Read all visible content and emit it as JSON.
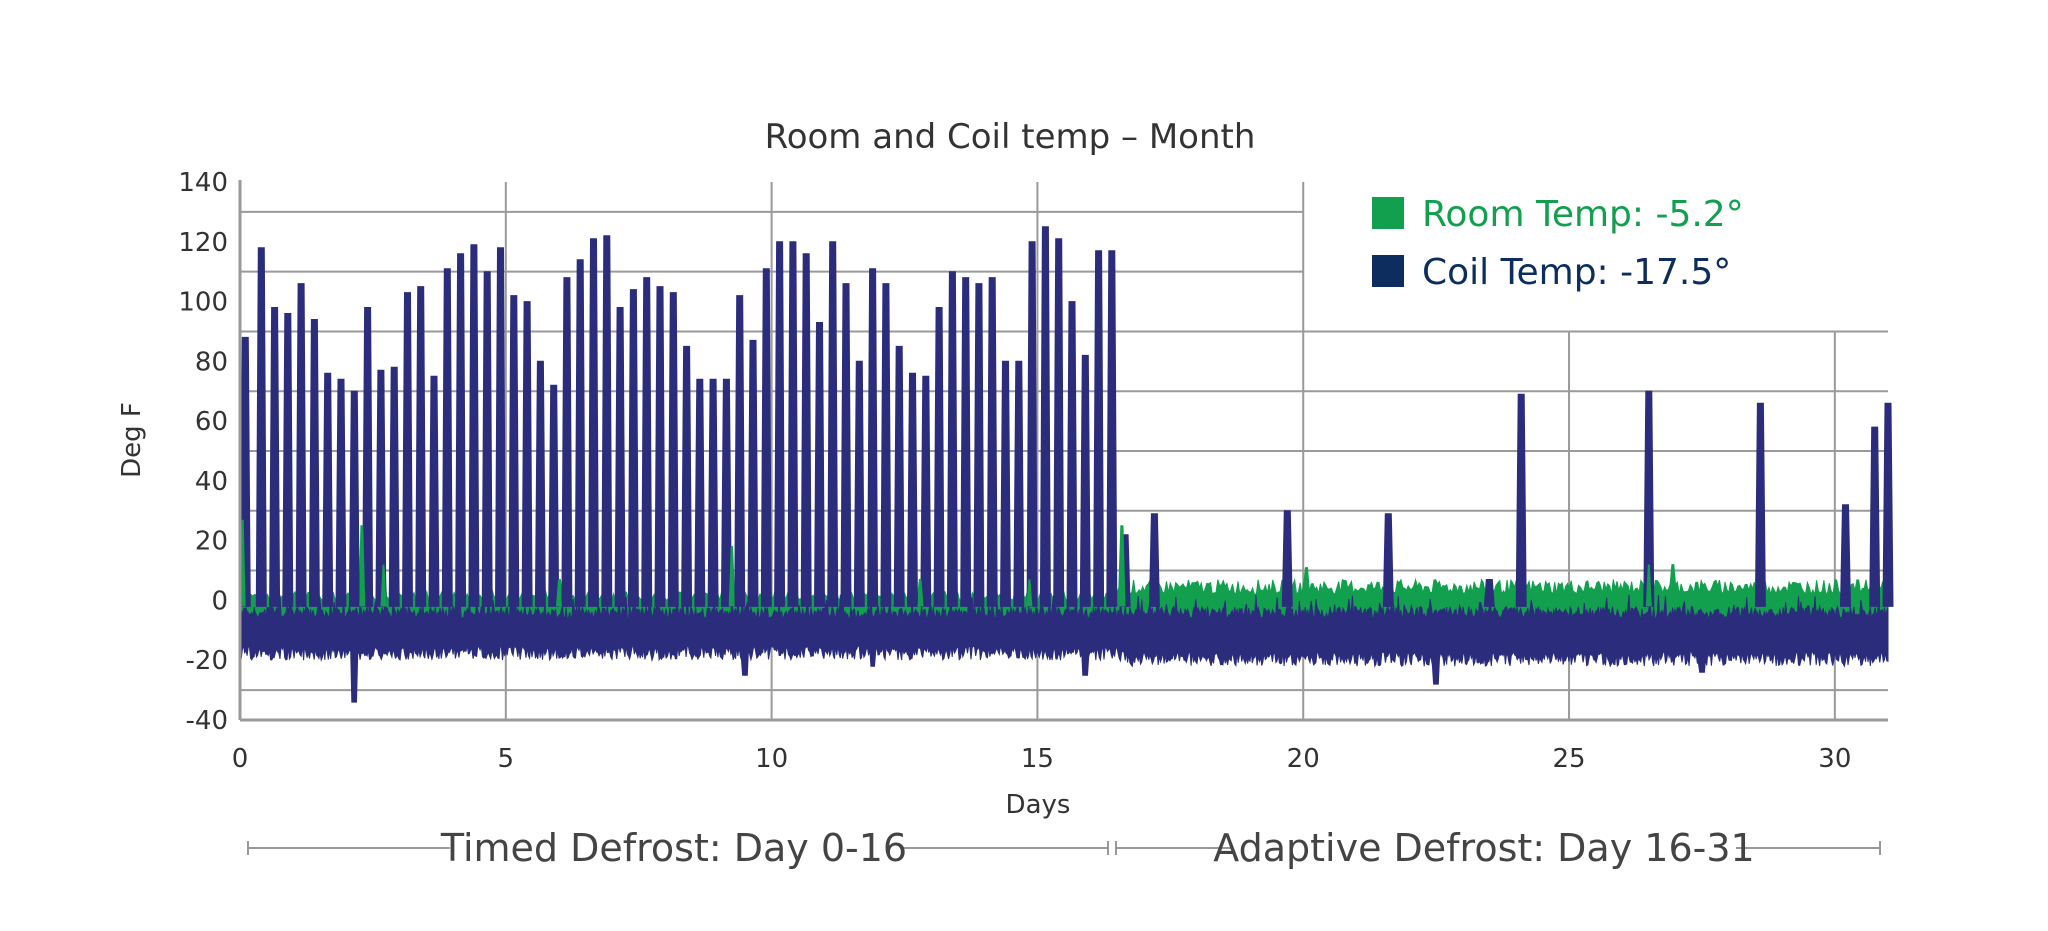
{
  "chart_data": {
    "type": "line",
    "title": "Room and Coil temp – Month",
    "xlabel": "Days",
    "ylabel": "Deg F",
    "xlim": [
      0,
      31
    ],
    "ylim": [
      -40,
      140
    ],
    "x_ticks": [
      0,
      5,
      10,
      15,
      20,
      25,
      30
    ],
    "y_ticks": [
      140,
      120,
      100,
      80,
      60,
      40,
      20,
      0,
      -20,
      -40
    ],
    "grid": true,
    "legend_position": "top-right",
    "legend": [
      {
        "label": "Room Temp: -5.2°",
        "color": "#12a04f"
      },
      {
        "label": "Coil Temp: -17.5°",
        "color": "#0c2d5e"
      }
    ],
    "sections": [
      {
        "label": "Timed Defrost: Day 0-16",
        "x_range": [
          0,
          16.5
        ]
      },
      {
        "label": "Adaptive Defrost: Day 16-31",
        "x_range": [
          16.5,
          31
        ]
      }
    ],
    "series": [
      {
        "name": "Coil Temp: -17.5°",
        "color": "#2b2d7c",
        "baseline_band": [
          -18,
          -2
        ],
        "spikes": [
          {
            "x": 0.1,
            "y": 88
          },
          {
            "x": 0.4,
            "y": 118
          },
          {
            "x": 0.65,
            "y": 98
          },
          {
            "x": 0.9,
            "y": 96
          },
          {
            "x": 1.15,
            "y": 106
          },
          {
            "x": 1.4,
            "y": 94
          },
          {
            "x": 1.65,
            "y": 76
          },
          {
            "x": 1.9,
            "y": 74
          },
          {
            "x": 2.15,
            "y": 70
          },
          {
            "x": 2.4,
            "y": 98
          },
          {
            "x": 2.65,
            "y": 77
          },
          {
            "x": 2.9,
            "y": 78
          },
          {
            "x": 3.15,
            "y": 103
          },
          {
            "x": 3.4,
            "y": 105
          },
          {
            "x": 3.65,
            "y": 75
          },
          {
            "x": 3.9,
            "y": 111
          },
          {
            "x": 4.15,
            "y": 116
          },
          {
            "x": 4.4,
            "y": 119
          },
          {
            "x": 4.65,
            "y": 110
          },
          {
            "x": 4.9,
            "y": 118
          },
          {
            "x": 5.15,
            "y": 102
          },
          {
            "x": 5.4,
            "y": 100
          },
          {
            "x": 5.65,
            "y": 80
          },
          {
            "x": 5.9,
            "y": 72
          },
          {
            "x": 6.15,
            "y": 108
          },
          {
            "x": 6.4,
            "y": 114
          },
          {
            "x": 6.65,
            "y": 121
          },
          {
            "x": 6.9,
            "y": 122
          },
          {
            "x": 7.15,
            "y": 98
          },
          {
            "x": 7.4,
            "y": 104
          },
          {
            "x": 7.65,
            "y": 108
          },
          {
            "x": 7.9,
            "y": 105
          },
          {
            "x": 8.15,
            "y": 103
          },
          {
            "x": 8.4,
            "y": 85
          },
          {
            "x": 8.65,
            "y": 74
          },
          {
            "x": 8.9,
            "y": 74
          },
          {
            "x": 9.15,
            "y": 74
          },
          {
            "x": 9.4,
            "y": 102
          },
          {
            "x": 9.65,
            "y": 87
          },
          {
            "x": 9.9,
            "y": 111
          },
          {
            "x": 10.15,
            "y": 120
          },
          {
            "x": 10.4,
            "y": 120
          },
          {
            "x": 10.65,
            "y": 116
          },
          {
            "x": 10.9,
            "y": 93
          },
          {
            "x": 11.15,
            "y": 120
          },
          {
            "x": 11.4,
            "y": 106
          },
          {
            "x": 11.65,
            "y": 80
          },
          {
            "x": 11.9,
            "y": 111
          },
          {
            "x": 12.15,
            "y": 106
          },
          {
            "x": 12.4,
            "y": 85
          },
          {
            "x": 12.65,
            "y": 76
          },
          {
            "x": 12.9,
            "y": 75
          },
          {
            "x": 13.15,
            "y": 98
          },
          {
            "x": 13.4,
            "y": 110
          },
          {
            "x": 13.65,
            "y": 108
          },
          {
            "x": 13.9,
            "y": 106
          },
          {
            "x": 14.15,
            "y": 108
          },
          {
            "x": 14.4,
            "y": 80
          },
          {
            "x": 14.65,
            "y": 80
          },
          {
            "x": 14.9,
            "y": 120
          },
          {
            "x": 15.15,
            "y": 125
          },
          {
            "x": 15.4,
            "y": 121
          },
          {
            "x": 15.65,
            "y": 100
          },
          {
            "x": 15.9,
            "y": 82
          },
          {
            "x": 16.15,
            "y": 117
          },
          {
            "x": 16.4,
            "y": 117
          },
          {
            "x": 16.65,
            "y": 22
          },
          {
            "x": 17.2,
            "y": 29
          },
          {
            "x": 19.7,
            "y": 30
          },
          {
            "x": 21.6,
            "y": 29
          },
          {
            "x": 23.5,
            "y": 7
          },
          {
            "x": 24.1,
            "y": 69
          },
          {
            "x": 26.5,
            "y": 70
          },
          {
            "x": 28.6,
            "y": 66
          },
          {
            "x": 30.2,
            "y": 32
          },
          {
            "x": 30.75,
            "y": 58
          },
          {
            "x": 31.0,
            "y": 66
          }
        ],
        "dips": [
          {
            "x": 2.15,
            "y": -34
          },
          {
            "x": 9.5,
            "y": -25
          },
          {
            "x": 11.9,
            "y": -22
          },
          {
            "x": 15.9,
            "y": -25
          },
          {
            "x": 22.5,
            "y": -28
          },
          {
            "x": 27.5,
            "y": -24
          }
        ]
      },
      {
        "name": "Room Temp: -5.2°",
        "color": "#12a04f",
        "baseline_band": [
          -8,
          3
        ],
        "peaks": [
          {
            "x": 0.05,
            "y": 27
          },
          {
            "x": 2.3,
            "y": 25
          },
          {
            "x": 2.7,
            "y": 12
          },
          {
            "x": 6.0,
            "y": 7
          },
          {
            "x": 9.25,
            "y": 18
          },
          {
            "x": 12.8,
            "y": 7
          },
          {
            "x": 14.85,
            "y": 7
          },
          {
            "x": 16.6,
            "y": 25
          },
          {
            "x": 20.05,
            "y": 11
          },
          {
            "x": 26.5,
            "y": 12
          },
          {
            "x": 26.95,
            "y": 12
          }
        ]
      }
    ]
  }
}
